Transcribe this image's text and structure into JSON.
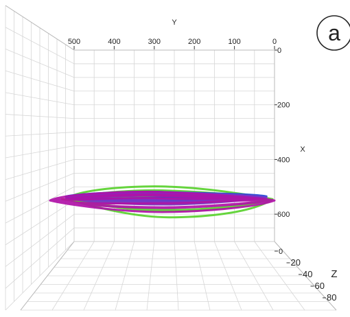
{
  "panel_label": "a",
  "chart_data": {
    "type": "scatter",
    "subtype": "3d-trajectory",
    "axes": {
      "y": {
        "label": "Y",
        "ticks": [
          "500",
          "400",
          "300",
          "200",
          "100",
          "0"
        ],
        "range": [
          0,
          500
        ]
      },
      "x": {
        "label": "X",
        "ticks": [
          "0",
          "200",
          "400",
          "600"
        ],
        "range": [
          0,
          700
        ]
      },
      "z": {
        "label": "Z",
        "ticks": [
          "0",
          "20",
          "40",
          "60",
          "80"
        ],
        "range": [
          0,
          80
        ]
      }
    },
    "grid": true,
    "view": "projection onto Y–X plane",
    "series": [
      {
        "color": "#ff7f00",
        "x_center": 545,
        "x_halfwidth": 10,
        "y_min": 15,
        "y_max": 530
      },
      {
        "color": "#d4e000",
        "x_center": 545,
        "x_halfwidth": 25,
        "y_min": 30,
        "y_max": 500
      },
      {
        "color": "#5ad22e",
        "x_center": 545,
        "x_halfwidth": 95,
        "y_min": 5,
        "y_max": 520
      },
      {
        "color": "#2747d6",
        "x_center": 535,
        "x_halfwidth": 25,
        "y_min": 20,
        "y_max": 520
      },
      {
        "color": "#7a35c8",
        "x_center": 540,
        "x_halfwidth": 35,
        "y_min": 20,
        "y_max": 520
      },
      {
        "color": "#b012a8",
        "x_center": 550,
        "x_halfwidth": 60,
        "y_min": 0,
        "y_max": 560
      }
    ]
  }
}
